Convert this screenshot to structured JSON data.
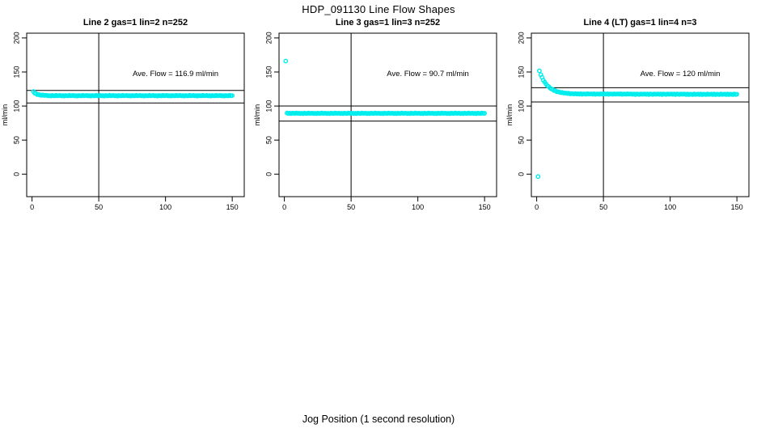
{
  "title": "HDP_091130  Line Flow Shapes",
  "xlabel": "Jog Position (1 second resolution)",
  "colors": {
    "points": "#00eded",
    "axis": "#000000",
    "background": "#ffffff"
  },
  "axes": {
    "ylabel": "ml/min",
    "x_ticks": [
      0,
      50,
      100,
      150
    ],
    "y_ticks": [
      0,
      50,
      100,
      150,
      200
    ],
    "x_range": [
      -4,
      159
    ],
    "y_range": [
      -33,
      207
    ]
  },
  "chart_data": [
    {
      "type": "scatter",
      "title": "Line 2 gas=1 lin=2 n=252",
      "annotation": "Ave. Flow =  116.9  ml/min",
      "ave_flow": 116.9,
      "n": 252,
      "marker": "open-circle",
      "ref_line_x": 50,
      "ref_lines_y": [
        123,
        104.5
      ],
      "x_start": 1,
      "x_step": 1,
      "values": [
        121.3,
        119.0,
        118.2,
        116.8,
        117.0,
        116.3,
        115.8,
        116.3,
        115.5,
        115.7,
        115.8,
        115.1,
        115.4,
        114.8,
        115.6,
        115.2,
        115.0,
        115.7,
        115.1,
        115.4,
        115.6,
        114.9,
        115.3,
        114.7,
        115.5,
        115.2,
        115.0,
        115.7,
        115.1,
        115.4,
        115.6,
        114.9,
        115.3,
        114.7,
        115.5,
        115.2,
        115.0,
        115.7,
        115.1,
        115.4,
        115.6,
        114.9,
        115.3,
        114.7,
        115.5,
        115.2,
        115.0,
        115.7,
        115.1,
        115.4,
        115.6,
        114.9,
        115.3,
        114.7,
        115.5,
        115.2,
        115.0,
        115.7,
        115.1,
        115.4,
        115.6,
        114.9,
        115.3,
        114.7,
        115.5,
        115.2,
        115.0,
        115.7,
        115.1,
        115.4,
        115.6,
        114.9,
        115.3,
        114.7,
        115.5,
        115.2,
        115.0,
        115.7,
        115.1,
        115.4,
        115.6,
        114.9,
        115.3,
        114.7,
        115.5,
        115.2,
        115.0,
        115.7,
        115.1,
        115.4,
        115.6,
        114.9,
        115.3,
        114.7,
        115.5,
        115.2,
        115.0,
        115.7,
        115.1,
        115.4,
        115.6,
        114.9,
        115.3,
        114.7,
        115.5,
        115.2,
        115.0,
        115.7,
        115.1,
        115.4,
        115.6,
        114.9,
        115.3,
        114.7,
        115.5,
        115.2,
        115.0,
        115.7,
        115.1,
        115.4,
        115.6,
        114.9,
        115.3,
        114.7,
        115.5,
        115.2,
        115.0,
        115.7,
        115.1,
        115.4,
        115.6,
        114.9,
        115.3,
        114.7,
        115.5,
        115.2,
        115.0,
        115.7,
        115.1,
        115.4,
        115.6,
        114.9,
        115.3,
        114.7,
        115.5,
        115.2,
        115.0,
        115.7,
        115.1,
        115.4
      ]
    },
    {
      "type": "scatter",
      "title": "Line 3 gas=1 lin=3 n=252",
      "annotation": "Ave. Flow =  90.7  ml/min",
      "ave_flow": 90.7,
      "n": 252,
      "marker": "open-circle",
      "ref_line_x": 50,
      "ref_lines_y": [
        100,
        78
      ],
      "x_start": 1,
      "x_step": 1,
      "values": [
        166.0,
        89.7,
        89.2,
        89.5,
        89.0,
        89.6,
        89.4,
        89.2,
        89.8,
        89.3,
        89.5,
        89.0,
        89.4,
        88.9,
        89.6,
        89.3,
        89.1,
        89.7,
        89.2,
        89.4,
        89.5,
        89.0,
        89.4,
        88.9,
        89.6,
        89.3,
        89.1,
        89.7,
        89.2,
        89.4,
        89.5,
        89.0,
        89.4,
        88.9,
        89.6,
        89.3,
        89.1,
        89.7,
        89.2,
        89.4,
        89.5,
        89.0,
        89.4,
        88.9,
        89.6,
        89.3,
        89.1,
        89.7,
        89.2,
        89.4,
        89.5,
        89.0,
        89.4,
        88.9,
        89.6,
        89.3,
        89.1,
        89.7,
        89.2,
        89.4,
        89.5,
        89.0,
        89.4,
        88.9,
        89.6,
        89.3,
        89.1,
        89.7,
        89.2,
        89.4,
        89.5,
        89.0,
        89.4,
        88.9,
        89.6,
        89.3,
        89.1,
        89.7,
        89.2,
        89.4,
        89.5,
        89.0,
        89.4,
        88.9,
        89.6,
        89.3,
        89.1,
        89.7,
        89.2,
        89.4,
        89.5,
        89.0,
        89.4,
        88.9,
        89.6,
        89.3,
        89.1,
        89.7,
        89.2,
        89.4,
        89.5,
        89.0,
        89.4,
        88.9,
        89.6,
        89.3,
        89.1,
        89.7,
        89.2,
        89.4,
        89.5,
        89.0,
        89.4,
        88.9,
        89.6,
        89.3,
        89.1,
        89.7,
        89.2,
        89.4,
        89.5,
        89.0,
        89.4,
        88.9,
        89.6,
        89.3,
        89.1,
        89.7,
        89.2,
        89.4,
        89.5,
        89.0,
        89.4,
        88.9,
        89.6,
        89.3,
        89.1,
        89.7,
        89.2,
        89.4,
        89.5,
        89.0,
        89.4,
        88.9,
        89.6,
        89.3,
        89.1,
        89.7,
        89.2,
        89.4
      ]
    },
    {
      "type": "scatter",
      "title": "Line 4 (LT) gas=1 lin=4 n=3",
      "annotation": "Ave. Flow =  120  ml/min",
      "ave_flow": 120,
      "n": 3,
      "marker": "open-circle",
      "ref_line_x": 50,
      "ref_lines_y": [
        127,
        106
      ],
      "x_start": 1,
      "x_step": 1,
      "values": [
        -3.5,
        151.8,
        146.1,
        142.3,
        137.8,
        135.2,
        132.3,
        129.8,
        128.6,
        126.4,
        125.3,
        124.3,
        122.8,
        122.6,
        121.1,
        121.1,
        120.4,
        119.7,
        120.0,
        119.2,
        119.1,
        119.1,
        118.4,
        118.9,
        117.9,
        118.4,
        118.1,
        117.8,
        118.4,
        117.8,
        118.0,
        117.5,
        118.1,
        117.3,
        117.9,
        117.7,
        117.4,
        118.1,
        117.6,
        117.8,
        117.9,
        117.4,
        118.0,
        117.2,
        117.8,
        117.6,
        117.3,
        118.0,
        117.5,
        117.7,
        117.9,
        117.4,
        118.0,
        117.2,
        117.8,
        117.6,
        117.3,
        118.0,
        117.5,
        117.7,
        117.9,
        117.4,
        118.0,
        117.2,
        117.8,
        117.6,
        117.3,
        118.0,
        117.5,
        117.7,
        117.7,
        117.2,
        117.8,
        117.0,
        117.6,
        117.4,
        117.1,
        117.8,
        117.3,
        117.5,
        117.7,
        117.2,
        117.8,
        117.0,
        117.6,
        117.4,
        117.1,
        117.8,
        117.3,
        117.5,
        117.7,
        117.2,
        117.8,
        117.0,
        117.6,
        117.4,
        117.1,
        117.8,
        117.3,
        117.5,
        117.7,
        117.2,
        117.8,
        117.0,
        117.6,
        117.4,
        117.1,
        117.8,
        117.3,
        117.5,
        117.5,
        117.0,
        117.6,
        116.8,
        117.4,
        117.2,
        116.9,
        117.6,
        117.1,
        117.3,
        117.5,
        117.0,
        117.6,
        116.8,
        117.4,
        117.2,
        116.9,
        117.6,
        117.1,
        117.3,
        117.5,
        117.0,
        117.6,
        116.8,
        117.4,
        117.2,
        116.9,
        117.6,
        117.1,
        117.3,
        117.5,
        117.0,
        117.6,
        116.8,
        117.4,
        117.2,
        116.9,
        117.6,
        117.1,
        117.3
      ]
    }
  ]
}
